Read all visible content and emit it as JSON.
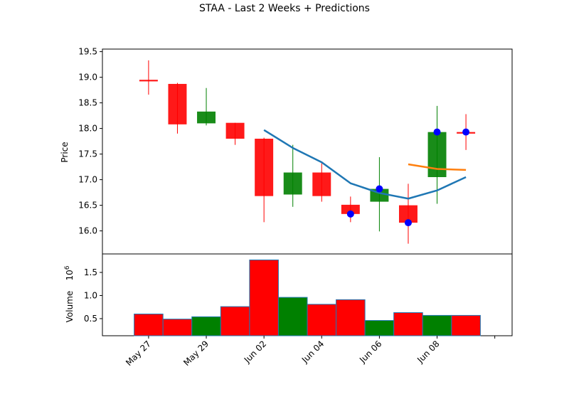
{
  "chart_data": {
    "type": "candlestick",
    "title": "STAA - Last 2 Weeks + Predictions",
    "colors": {
      "up": "#008000",
      "down": "#ff0000",
      "prediction_line_1": "#1f77b4",
      "prediction_line_2": "#ff7f0e",
      "markers": "#0000ff"
    },
    "price_panel": {
      "ylabel": "Price",
      "ylim": [
        15.55,
        19.55
      ],
      "yticks": [
        16.0,
        16.5,
        17.0,
        17.5,
        18.0,
        18.5,
        19.0,
        19.5
      ],
      "ytick_labels": [
        "16.0",
        "16.5",
        "17.0",
        "17.5",
        "18.0",
        "18.5",
        "19.0",
        "19.5"
      ],
      "candles": [
        {
          "x": -0.5,
          "open": 18.95,
          "high": 19.33,
          "low": 18.66,
          "close": 18.93
        },
        {
          "x": 0.5,
          "open": 18.87,
          "high": 18.89,
          "low": 17.9,
          "close": 18.08
        },
        {
          "x": 1.5,
          "open": 18.1,
          "high": 18.79,
          "low": 18.06,
          "close": 18.33
        },
        {
          "x": 2.5,
          "open": 18.11,
          "high": 18.11,
          "low": 17.68,
          "close": 17.8
        },
        {
          "x": 3.5,
          "open": 17.8,
          "high": 17.82,
          "low": 16.17,
          "close": 16.68
        },
        {
          "x": 4.5,
          "open": 16.71,
          "high": 17.68,
          "low": 16.47,
          "close": 17.14
        },
        {
          "x": 5.5,
          "open": 17.14,
          "high": 17.32,
          "low": 16.57,
          "close": 16.68
        },
        {
          "x": 6.5,
          "open": 16.51,
          "high": 16.67,
          "low": 16.17,
          "close": 16.33
        },
        {
          "x": 7.5,
          "open": 16.57,
          "high": 17.44,
          "low": 15.99,
          "close": 16.82
        },
        {
          "x": 8.5,
          "open": 16.5,
          "high": 16.92,
          "low": 15.75,
          "close": 16.16
        },
        {
          "x": 9.5,
          "open": 17.05,
          "high": 18.44,
          "low": 16.53,
          "close": 17.93
        },
        {
          "x": 10.5,
          "open": 17.93,
          "high": 18.28,
          "low": 17.58,
          "close": 17.92
        }
      ],
      "prediction_line_1": {
        "x": [
          3.5,
          4.5,
          5.5,
          6.5,
          7.5,
          8.5,
          9.5,
          10.5
        ],
        "y": [
          17.97,
          17.62,
          17.34,
          16.93,
          16.74,
          16.63,
          16.79,
          17.05
        ]
      },
      "prediction_line_2": {
        "x": [
          8.5,
          9.5,
          10.5
        ],
        "y": [
          17.3,
          17.21,
          17.19
        ]
      },
      "markers": {
        "x": [
          6.5,
          7.5,
          8.5,
          9.5,
          10.5
        ],
        "y": [
          16.33,
          16.82,
          16.16,
          17.93,
          17.93
        ]
      }
    },
    "volume_panel": {
      "ylabel": "Volume",
      "multiplier": "10^6",
      "ylim": [
        0.13,
        1.9
      ],
      "yticks": [
        0.5,
        1.0,
        1.5
      ],
      "ytick_labels": [
        "0.5",
        "1.0",
        "1.5"
      ],
      "bars": [
        {
          "x": -0.5,
          "value": 0.6,
          "dir": "down"
        },
        {
          "x": 0.5,
          "value": 0.49,
          "dir": "down"
        },
        {
          "x": 1.5,
          "value": 0.54,
          "dir": "up"
        },
        {
          "x": 2.5,
          "value": 0.76,
          "dir": "down"
        },
        {
          "x": 3.5,
          "value": 1.77,
          "dir": "down"
        },
        {
          "x": 4.5,
          "value": 0.96,
          "dir": "up"
        },
        {
          "x": 5.5,
          "value": 0.81,
          "dir": "down"
        },
        {
          "x": 6.5,
          "value": 0.91,
          "dir": "down"
        },
        {
          "x": 7.5,
          "value": 0.46,
          "dir": "up"
        },
        {
          "x": 8.5,
          "value": 0.63,
          "dir": "down"
        },
        {
          "x": 9.5,
          "value": 0.57,
          "dir": "up"
        },
        {
          "x": 10.5,
          "value": 0.57,
          "dir": "down"
        }
      ]
    },
    "xaxis": {
      "xlim": [
        -2.1,
        12.1
      ],
      "ticks": [
        {
          "x": -0.5,
          "label": "May 27"
        },
        {
          "x": 1.5,
          "label": "May 29"
        },
        {
          "x": 3.5,
          "label": "Jun 02"
        },
        {
          "x": 5.5,
          "label": "Jun 04"
        },
        {
          "x": 7.5,
          "label": "Jun 06"
        },
        {
          "x": 9.5,
          "label": "Jun 08"
        },
        {
          "x": 11.5,
          "label": ""
        }
      ]
    }
  }
}
